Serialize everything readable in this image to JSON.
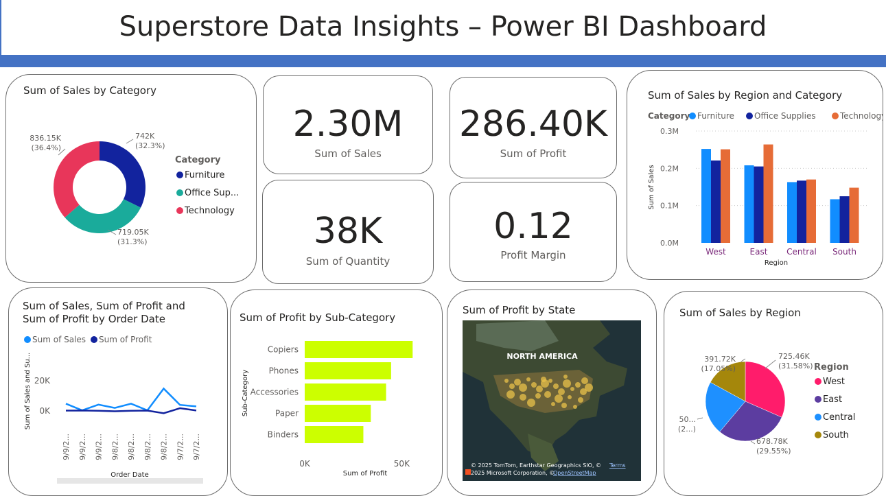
{
  "header": {
    "title": "Superstore Data Insights – Power BI Dashboard"
  },
  "colors": {
    "furniture": "#118dff",
    "office": "#12239e",
    "technology": "#e66c37",
    "donut_furniture": "#12239e",
    "donut_office": "#1aab9b",
    "donut_tech": "#e8365a",
    "profit_bar": "#ccff00",
    "region_west": "#ff1c6b",
    "region_east": "#5c3da0",
    "region_central": "#1e90ff",
    "region_south": "#a5870b",
    "band": "#4472c4"
  },
  "cards": {
    "sales_by_category": {
      "title": "Sum of Sales by Category"
    },
    "sum_sales": {
      "value": "2.30M",
      "label": "Sum of Sales"
    },
    "sum_profit": {
      "value": "286.40K",
      "label": "Sum of Profit"
    },
    "sum_quantity": {
      "value": "38K",
      "label": "Sum of Quantity"
    },
    "profit_margin": {
      "value": "0.12",
      "label": "Profit Margin"
    },
    "sales_by_region_category": {
      "title": "Sum of Sales by Region and Category"
    },
    "sales_profit_by_date": {
      "title_line1": "Sum of Sales, Sum of Profit and",
      "title_line2": "Sum of Profit by Order Date"
    },
    "profit_by_subcategory": {
      "title": "Sum of Profit by Sub-Category"
    },
    "profit_by_state": {
      "title": "Sum of Profit by State",
      "map_label": "NORTH AMERICA",
      "attribution1": "© 2025 TomTom, Earthstar Geographics SIO, ©",
      "attribution_link": "Terms",
      "attribution2": "2025 Microsoft Corporation, ©",
      "attribution2_link": "OpenStreetMap"
    },
    "sales_by_region": {
      "title": "Sum of Sales by Region"
    }
  },
  "chart_data": [
    {
      "id": "donut",
      "type": "pie",
      "title": "Sum of Sales by Category",
      "legend_title": "Category",
      "categories": [
        "Furniture",
        "Office Sup...",
        "Technology"
      ],
      "values": [
        742000,
        719050,
        836150
      ],
      "labels": [
        [
          "742K",
          "(32.3%)"
        ],
        [
          "719.05K",
          "(31.3%)"
        ],
        [
          "836.15K",
          "(36.4%)"
        ]
      ]
    },
    {
      "id": "clustered",
      "type": "bar",
      "title": "Sum of Sales by Region and Category",
      "legend_title": "Category",
      "categories": [
        "West",
        "East",
        "Central",
        "South"
      ],
      "series": [
        {
          "name": "Furniture",
          "values": [
            252000,
            208000,
            163000,
            117000
          ]
        },
        {
          "name": "Office Supplies",
          "values": [
            221000,
            205000,
            167000,
            125000
          ]
        },
        {
          "name": "Technology",
          "values": [
            251000,
            264000,
            170000,
            148000
          ]
        }
      ],
      "xlabel": "Region",
      "ylabel": "Sum of Sales",
      "yticks": [
        "0.0M",
        "0.1M",
        "0.2M",
        "0.3M"
      ],
      "ylim": [
        0,
        300000
      ]
    },
    {
      "id": "linechart",
      "type": "line",
      "title": "Sum of Sales, Sum of Profit and Sum of Profit by Order Date",
      "x": [
        "9/9/2...",
        "9/9/2...",
        "9/9/2...",
        "9/8/2...",
        "9/8/2...",
        "9/8/2...",
        "9/8/2...",
        "9/7/2...",
        "9/7/2..."
      ],
      "series": [
        {
          "name": "Sum of Sales",
          "values": [
            4800,
            400,
            4200,
            2000,
            4800,
            400,
            14800,
            4000,
            3000
          ]
        },
        {
          "name": "Sum of Profit",
          "values": [
            200,
            300,
            100,
            -200,
            100,
            200,
            -1500,
            1800,
            300
          ]
        }
      ],
      "xlabel": "Order Date",
      "ylabel": "Sum of Sales and Su...",
      "yticks": [
        "0K",
        "20K"
      ],
      "ylim": [
        -5000,
        25000
      ]
    },
    {
      "id": "hbar",
      "type": "bar",
      "title": "Sum of Profit by Sub-Category",
      "categories": [
        "Copiers",
        "Phones",
        "Accessories",
        "Paper",
        "Binders"
      ],
      "values": [
        55618,
        44516,
        41937,
        34054,
        30222
      ],
      "xlabel": "Sum of Profit",
      "ylabel": "Sub-Category",
      "xticks": [
        "0K",
        "50K"
      ],
      "xlim": [
        0,
        58000
      ]
    },
    {
      "id": "pie",
      "type": "pie",
      "title": "Sum of Sales by Region",
      "legend_title": "Region",
      "categories": [
        "West",
        "East",
        "Central",
        "South"
      ],
      "values": [
        725460,
        678780,
        501240,
        391720
      ],
      "labels": [
        [
          "725.46K",
          "(31.58%)"
        ],
        [
          "678.78K",
          "(29.55%)"
        ],
        [
          "50...",
          "(2...)"
        ],
        [
          "391.72K",
          "(17.05%)"
        ]
      ]
    }
  ]
}
